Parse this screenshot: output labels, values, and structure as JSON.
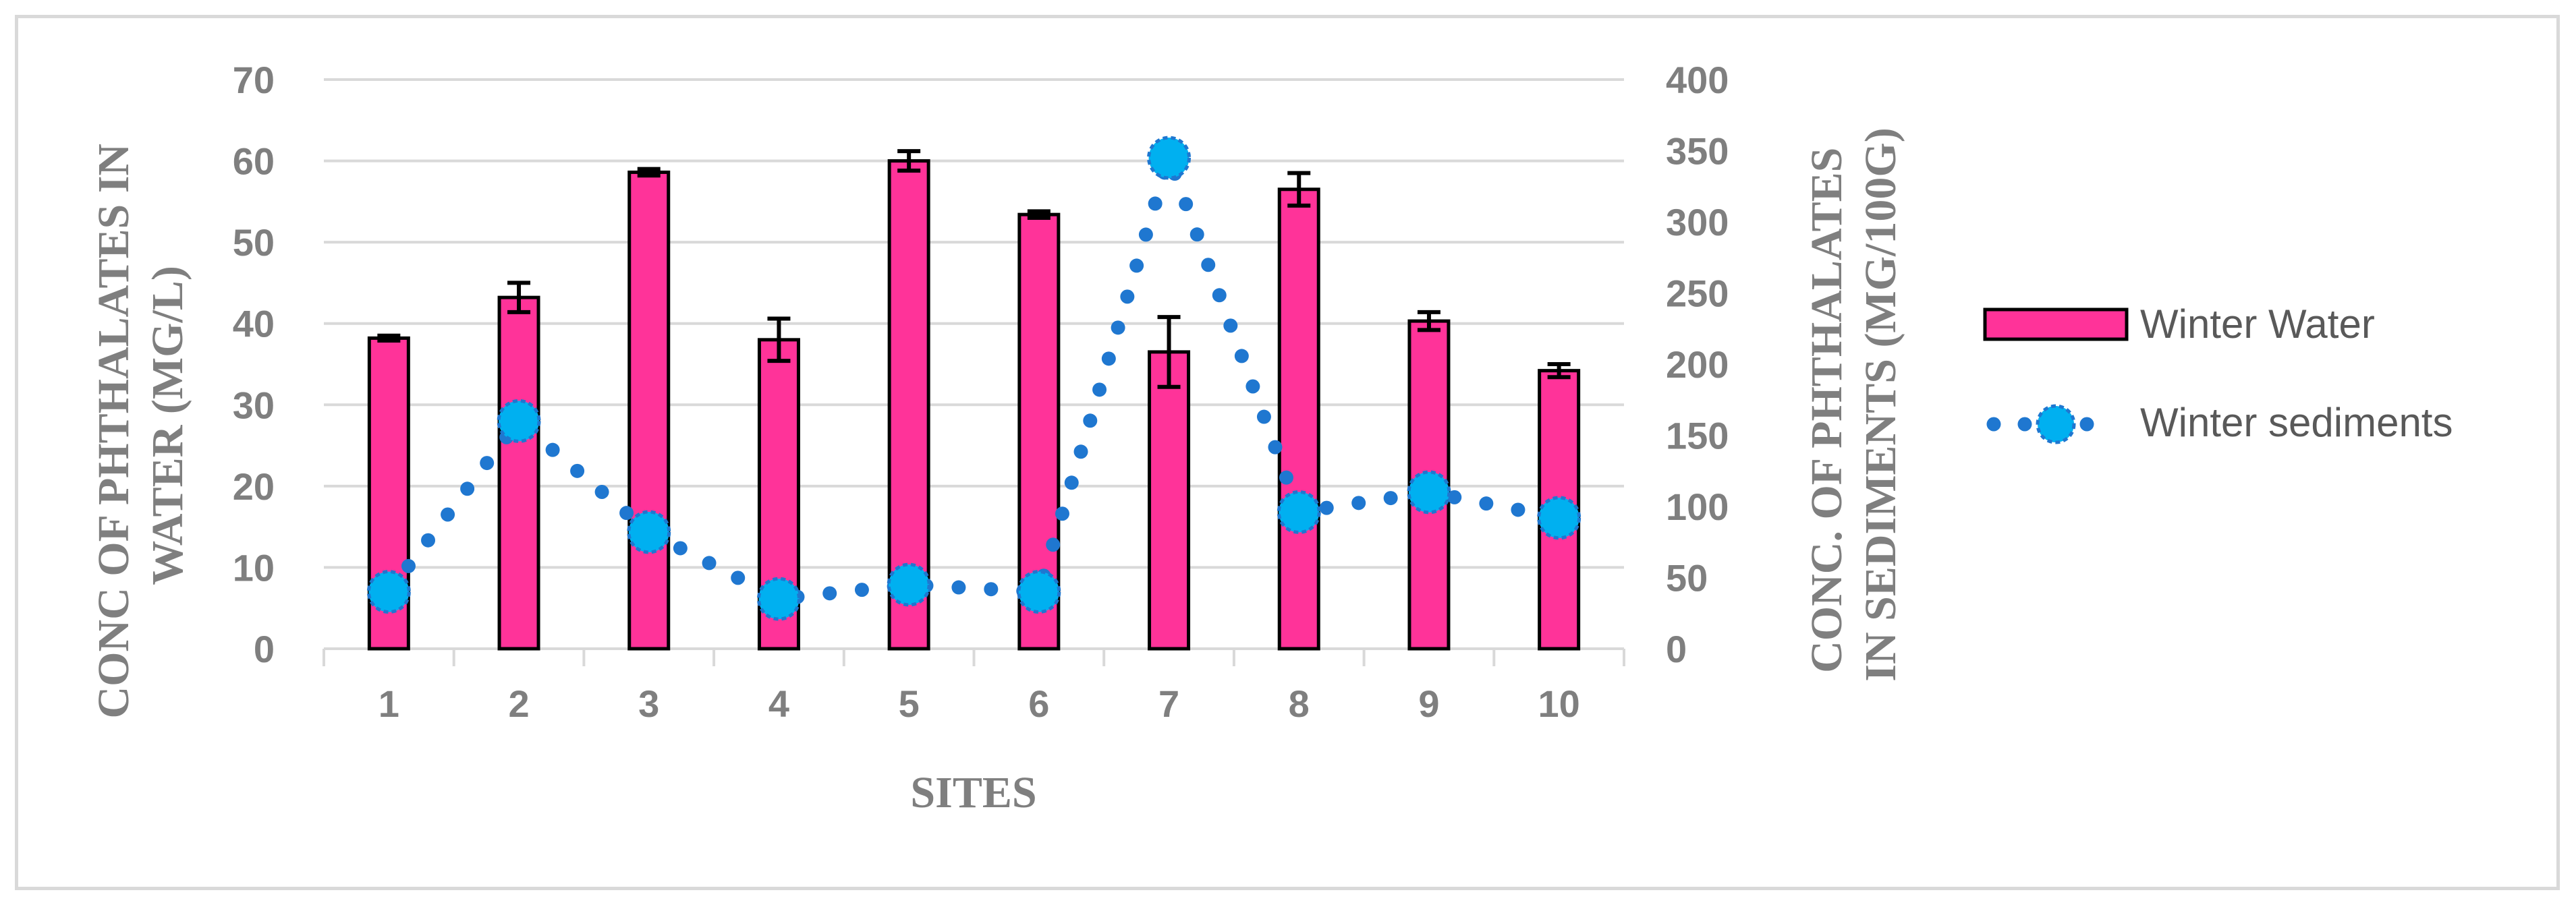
{
  "chart_data": {
    "type": "bar",
    "categories": [
      "1",
      "2",
      "3",
      "4",
      "5",
      "6",
      "7",
      "8",
      "9",
      "10"
    ],
    "xlabel": "SITES",
    "ylabel_left": [
      "CONC OF PHTHALATES IN",
      "WATER (MG/L)"
    ],
    "ylabel_right": [
      "CONC. OF PHTHALATES",
      "IN SEDIMENTS (MG/100G)"
    ],
    "ylim_left": [
      0,
      70
    ],
    "ylim_right": [
      0,
      400
    ],
    "yticks_left": [
      "0",
      "10",
      "20",
      "30",
      "40",
      "50",
      "60",
      "70"
    ],
    "yticks_right": [
      "0",
      "50",
      "100",
      "150",
      "200",
      "250",
      "300",
      "350",
      "400"
    ],
    "grid": true,
    "legend_position": "right",
    "series": [
      {
        "name": "Winter Water",
        "type": "bar",
        "axis": "left",
        "color": "#ff3399",
        "values": [
          38.2,
          43.2,
          58.6,
          38.0,
          60.0,
          53.4,
          36.5,
          56.5,
          40.3,
          34.2
        ],
        "error": [
          0.3,
          1.8,
          0.4,
          2.6,
          1.2,
          0.4,
          4.3,
          2.0,
          1.1,
          0.8
        ]
      },
      {
        "name": "Winter sediments",
        "type": "line",
        "axis": "right",
        "color": "#00b0f0",
        "line_color": "#1f77d0",
        "values": [
          40,
          160,
          82,
          35,
          45,
          40,
          345,
          96,
          110,
          92
        ]
      }
    ]
  }
}
